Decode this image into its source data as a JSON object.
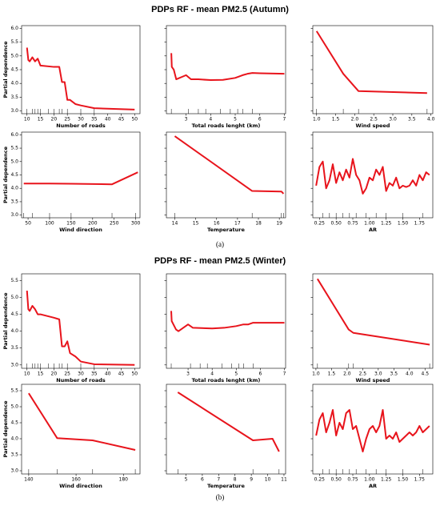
{
  "figure_titles": [
    "PDPs RF - mean PM2.5 (Autumn)",
    "PDPs RF - mean PM2.5 (Winter)"
  ],
  "captions": [
    "(a)",
    "(b)"
  ],
  "chart_data": [
    {
      "type": "line",
      "xlabel": "Number of roads",
      "ylabel": "Partial dependence",
      "color": "#e8141c",
      "x": [
        10,
        10.5,
        11,
        12,
        13,
        14,
        15,
        20,
        22,
        23,
        24,
        25,
        26,
        28,
        30,
        35,
        50
      ],
      "values": [
        5.3,
        4.85,
        4.8,
        4.95,
        4.8,
        4.9,
        4.65,
        4.6,
        4.6,
        4.05,
        4.05,
        3.4,
        3.4,
        3.25,
        3.2,
        3.1,
        3.05
      ],
      "rug": [
        10,
        12,
        13,
        14,
        15,
        18,
        20,
        22,
        23,
        25,
        30,
        35
      ],
      "xlim": [
        8,
        52
      ],
      "ylim": [
        2.9,
        6.1
      ],
      "xticks": [
        10,
        15,
        20,
        25,
        30,
        35,
        40,
        45,
        50
      ],
      "yticks": [
        {
          "value": 3,
          "label": "3.0"
        },
        3.5,
        {
          "value": 4,
          "label": "4.0"
        },
        4.5,
        {
          "value": 5,
          "label": "5.0"
        },
        5.5,
        {
          "value": 6,
          "label": "6.0"
        }
      ]
    },
    {
      "type": "line",
      "xlabel": "Total roads lenght (km)",
      "color": "#e8141c",
      "x": [
        2.4,
        2.42,
        2.5,
        2.6,
        3,
        3.2,
        3.5,
        4,
        4.5,
        5,
        5.3,
        5.5,
        5.7,
        6,
        7
      ],
      "values": [
        5.1,
        4.6,
        4.5,
        4.15,
        4.3,
        4.15,
        4.15,
        4.12,
        4.13,
        4.2,
        4.3,
        4.35,
        4.38,
        4.37,
        4.35
      ],
      "rug": [
        2.4,
        3.1,
        3.5,
        3.8,
        4.4,
        4.8,
        5.1,
        5.3,
        5.7
      ],
      "xlim": [
        2.2,
        7.05
      ],
      "ylim": [
        2.9,
        6.1
      ],
      "xticks": [
        3,
        4,
        5,
        6,
        7
      ],
      "yticks": [
        3,
        3.5,
        4,
        4.5,
        5,
        5.5,
        6
      ]
    },
    {
      "type": "line",
      "xlabel": "Wind speed",
      "color": "#e8141c",
      "x": [
        1.0,
        1.7,
        2.1,
        3.9
      ],
      "values": [
        5.9,
        4.35,
        3.72,
        3.65
      ],
      "rug": [
        1.0,
        1.7,
        2.1,
        3.9
      ],
      "xlim": [
        0.9,
        4.05
      ],
      "ylim": [
        2.9,
        6.1
      ],
      "xticks": [
        {
          "value": 1,
          "label": "1.0"
        },
        1.5,
        {
          "value": 2,
          "label": "2.0"
        },
        2.5,
        {
          "value": 3,
          "label": "3.0"
        },
        3.5,
        {
          "value": 4,
          "label": "4.0"
        }
      ],
      "yticks": [
        3,
        3.5,
        4,
        4.5,
        5,
        5.5,
        6
      ]
    },
    {
      "type": "line",
      "xlabel": "Wind direction",
      "ylabel": "Partial dependence",
      "color": "#e8141c",
      "x": [
        40,
        100,
        150,
        245,
        305
      ],
      "values": [
        4.18,
        4.18,
        4.17,
        4.15,
        4.6
      ],
      "rug": [
        40,
        60,
        100,
        150,
        245,
        300
      ],
      "xlim": [
        35,
        310
      ],
      "ylim": [
        2.9,
        6.1
      ],
      "xticks": [
        50,
        100,
        150,
        200,
        250,
        300
      ],
      "yticks": [
        {
          "value": 3,
          "label": "3.0"
        },
        3.5,
        {
          "value": 4,
          "label": "4.0"
        },
        4.5,
        {
          "value": 5,
          "label": "5.0"
        },
        5.5,
        {
          "value": 6,
          "label": "6.0"
        }
      ]
    },
    {
      "type": "line",
      "xlabel": "Temperature",
      "color": "#e8141c",
      "x": [
        14,
        17.7,
        19.1,
        19.2
      ],
      "values": [
        5.95,
        3.9,
        3.88,
        3.8
      ],
      "rug": [
        14,
        17.7,
        19.1,
        19.2
      ],
      "xlim": [
        13.6,
        19.3
      ],
      "ylim": [
        2.9,
        6.1
      ],
      "xticks": [
        14,
        15,
        16,
        17,
        18,
        19
      ],
      "yticks": [
        3,
        3.5,
        4,
        4.5,
        5,
        5.5,
        6
      ]
    },
    {
      "type": "line",
      "xlabel": "AR",
      "color": "#e8141c",
      "x": [
        0.2,
        0.25,
        0.3,
        0.35,
        0.4,
        0.45,
        0.5,
        0.55,
        0.6,
        0.65,
        0.7,
        0.75,
        0.8,
        0.85,
        0.9,
        0.95,
        1.0,
        1.05,
        1.1,
        1.15,
        1.2,
        1.25,
        1.3,
        1.35,
        1.4,
        1.45,
        1.5,
        1.55,
        1.6,
        1.65,
        1.7,
        1.75,
        1.8,
        1.85,
        1.9
      ],
      "values": [
        4.1,
        4.8,
        5.0,
        4.0,
        4.3,
        4.9,
        4.2,
        4.6,
        4.3,
        4.7,
        4.4,
        5.1,
        4.5,
        4.3,
        3.8,
        4.0,
        4.4,
        4.3,
        4.7,
        4.5,
        4.8,
        3.9,
        4.2,
        4.1,
        4.4,
        4.0,
        4.1,
        4.05,
        4.1,
        4.3,
        4.1,
        4.5,
        4.3,
        4.6,
        4.5
      ],
      "rug": [
        0.3,
        0.4,
        0.5,
        0.6,
        0.7,
        0.8,
        0.95,
        1.1,
        1.25,
        1.5,
        1.8
      ],
      "xlim": [
        0.15,
        1.95
      ],
      "ylim": [
        2.9,
        6.1
      ],
      "xticks": [
        0.25,
        {
          "value": 0.5,
          "label": "0.50"
        },
        0.75,
        {
          "value": 1,
          "label": "1.00"
        },
        1.25,
        {
          "value": 1.5,
          "label": "1.50"
        },
        1.75
      ],
      "yticks": [
        3,
        3.5,
        4,
        4.5,
        5,
        5.5,
        6
      ]
    },
    {
      "type": "line",
      "xlabel": "Number of roads",
      "ylabel": "Partial dependence",
      "color": "#e8141c",
      "x": [
        10,
        10.5,
        11,
        12,
        13,
        14,
        15,
        20,
        22,
        23,
        24,
        25,
        26,
        28,
        30,
        35,
        50
      ],
      "values": [
        5.2,
        4.65,
        4.6,
        4.75,
        4.65,
        4.5,
        4.5,
        4.4,
        4.35,
        3.55,
        3.55,
        3.7,
        3.35,
        3.25,
        3.1,
        3.02,
        3.0
      ],
      "rug": [
        10,
        12,
        13,
        14,
        15,
        18,
        20,
        22,
        23,
        25,
        30,
        35
      ],
      "xlim": [
        8,
        52
      ],
      "ylim": [
        2.9,
        5.7
      ],
      "xticks": [
        10,
        15,
        20,
        25,
        30,
        35,
        40,
        45,
        50
      ],
      "yticks": [
        {
          "value": 3,
          "label": "3.0"
        },
        3.5,
        {
          "value": 4,
          "label": "4.0"
        },
        4.5,
        {
          "value": 5,
          "label": "5.0"
        },
        5.5
      ]
    },
    {
      "type": "line",
      "xlabel": "Total roads lenght (km)",
      "color": "#e8141c",
      "x": [
        2.3,
        2.32,
        2.5,
        2.6,
        3,
        3.2,
        4,
        4.5,
        5,
        5.3,
        5.5,
        5.7,
        6,
        7
      ],
      "values": [
        4.6,
        4.3,
        4.05,
        4.0,
        4.2,
        4.1,
        4.08,
        4.1,
        4.15,
        4.2,
        4.2,
        4.25,
        4.25,
        4.25
      ],
      "rug": [
        2.3,
        3.1,
        3.5,
        3.8,
        4.4,
        4.8,
        5.1,
        5.3,
        5.7
      ],
      "xlim": [
        2.1,
        7.05
      ],
      "ylim": [
        2.9,
        5.7
      ],
      "xticks": [
        3,
        4,
        5,
        6,
        7
      ],
      "yticks": [
        3,
        3.5,
        4,
        4.5,
        5,
        5.5
      ]
    },
    {
      "type": "line",
      "xlabel": "Wind speed",
      "color": "#e8141c",
      "x": [
        1.05,
        2.05,
        2.2,
        4.65
      ],
      "values": [
        5.55,
        4.05,
        3.95,
        3.6
      ],
      "rug": [
        1.05,
        2.05,
        2.2,
        4.65
      ],
      "xlim": [
        0.9,
        4.75
      ],
      "ylim": [
        2.9,
        5.7
      ],
      "xticks": [
        {
          "value": 1,
          "label": "1.0"
        },
        1.5,
        {
          "value": 2,
          "label": "2.0"
        },
        2.5,
        {
          "value": 3,
          "label": "3.0"
        },
        3.5,
        {
          "value": 4,
          "label": "4.0"
        },
        4.5
      ],
      "yticks": [
        3,
        3.5,
        4,
        4.5,
        5,
        5.5
      ]
    },
    {
      "type": "line",
      "xlabel": "Wind direction",
      "ylabel": "Partial dependence",
      "color": "#e8141c",
      "x": [
        140,
        152,
        167,
        185
      ],
      "values": [
        5.42,
        4.02,
        3.95,
        3.65
      ],
      "rug": [
        140,
        152,
        167,
        185
      ],
      "xlim": [
        137,
        187
      ],
      "ylim": [
        2.9,
        5.7
      ],
      "xticks": [
        140,
        160,
        180
      ],
      "yticks": [
        {
          "value": 3,
          "label": "3.0"
        },
        3.5,
        {
          "value": 4,
          "label": "4.0"
        },
        4.5,
        {
          "value": 5,
          "label": "5.0"
        },
        5.5
      ]
    },
    {
      "type": "line",
      "xlabel": "Temperature",
      "color": "#e8141c",
      "x": [
        4.5,
        9.1,
        10.3,
        10.7
      ],
      "values": [
        5.45,
        3.95,
        4.0,
        3.6
      ],
      "rug": [
        4.5,
        9.1,
        10.7
      ],
      "xlim": [
        3.8,
        11.1
      ],
      "ylim": [
        2.9,
        5.7
      ],
      "xticks": [
        5,
        6,
        7,
        8,
        9,
        10,
        11
      ],
      "yticks": [
        3,
        3.5,
        4,
        4.5,
        5,
        5.5
      ]
    },
    {
      "type": "line",
      "xlabel": "AR",
      "color": "#e8141c",
      "x": [
        0.2,
        0.25,
        0.3,
        0.35,
        0.4,
        0.45,
        0.5,
        0.55,
        0.6,
        0.65,
        0.7,
        0.75,
        0.8,
        0.85,
        0.9,
        0.95,
        1.0,
        1.05,
        1.1,
        1.15,
        1.2,
        1.25,
        1.3,
        1.35,
        1.4,
        1.45,
        1.5,
        1.55,
        1.6,
        1.65,
        1.7,
        1.75,
        1.8,
        1.85,
        1.9
      ],
      "values": [
        4.1,
        4.6,
        4.8,
        4.2,
        4.5,
        4.9,
        4.1,
        4.5,
        4.3,
        4.8,
        4.9,
        4.3,
        4.4,
        4.0,
        3.6,
        4.0,
        4.3,
        4.4,
        4.2,
        4.4,
        4.9,
        4.0,
        4.1,
        4.0,
        4.2,
        3.9,
        4.0,
        4.1,
        4.2,
        4.1,
        4.2,
        4.4,
        4.2,
        4.3,
        4.4
      ],
      "rug": [
        0.3,
        0.4,
        0.5,
        0.6,
        0.7,
        0.8,
        0.95,
        1.1,
        1.25,
        1.5,
        1.8
      ],
      "xlim": [
        0.15,
        1.95
      ],
      "ylim": [
        2.9,
        5.7
      ],
      "xticks": [
        0.25,
        {
          "value": 0.5,
          "label": "0.50"
        },
        0.75,
        {
          "value": 1,
          "label": "1.00"
        },
        1.25,
        {
          "value": 1.5,
          "label": "1.50"
        },
        1.75
      ],
      "yticks": [
        3,
        3.5,
        4,
        4.5,
        5,
        5.5
      ]
    }
  ]
}
